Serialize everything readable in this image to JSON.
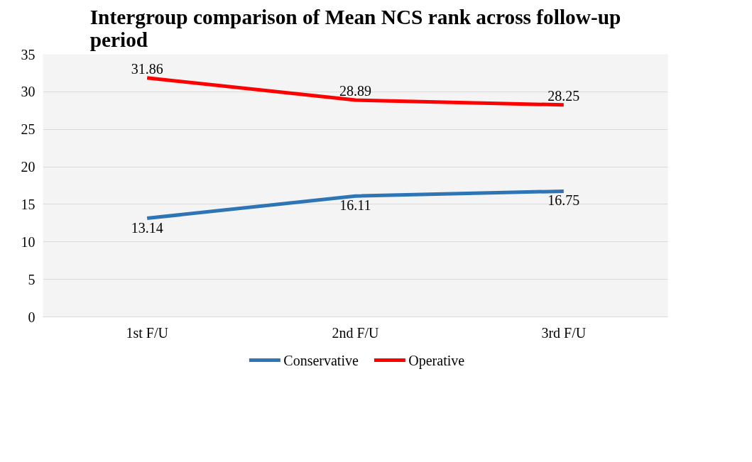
{
  "chart_data": {
    "type": "line",
    "title": "Intergroup comparison of Mean NCS rank across follow-up period",
    "categories": [
      "1st F/U",
      "2nd F/U",
      "3rd F/U"
    ],
    "series": [
      {
        "name": "Conservative",
        "color": "#2e75b6",
        "values": [
          13.14,
          16.11,
          16.75
        ]
      },
      {
        "name": "Operative",
        "color": "#ff0000",
        "values": [
          31.86,
          28.89,
          28.25
        ]
      }
    ],
    "ylim": [
      0,
      35
    ],
    "yticks": [
      0,
      5,
      10,
      15,
      20,
      25,
      30,
      35
    ],
    "grid": "y",
    "legend": "bottom",
    "data_labels": true,
    "marker": "none",
    "line_style": "solid"
  }
}
